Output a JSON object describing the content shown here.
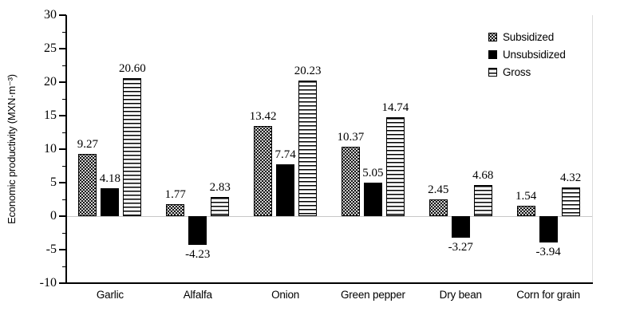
{
  "chart_data": {
    "type": "bar",
    "title": "",
    "xlabel": "",
    "ylabel": "Economic productivity (MXN·m⁻³)",
    "ylim": [
      -10,
      30
    ],
    "ytick_step": 5,
    "ytick_labels": [
      "-10",
      "-5",
      "0",
      "5",
      "10",
      "15",
      "20",
      "25",
      "30"
    ],
    "grid": false,
    "legend_position": "top-right",
    "value_labels_decimals": 2,
    "categories": [
      "Garlic",
      "Alfalfa",
      "Onion",
      "Green pepper",
      "Dry bean",
      "Corn for grain"
    ],
    "series": [
      {
        "name": "Subsidized",
        "pattern": "dots",
        "values": [
          9.27,
          1.77,
          13.42,
          10.37,
          2.45,
          1.54
        ]
      },
      {
        "name": "Unsubsidized",
        "pattern": "solid",
        "values": [
          4.18,
          -4.23,
          7.74,
          5.05,
          -3.27,
          -3.94
        ]
      },
      {
        "name": "Gross",
        "pattern": "hlines",
        "values": [
          20.6,
          2.83,
          20.23,
          14.74,
          4.68,
          4.32
        ]
      }
    ],
    "colors": {
      "bar_outline": "#000000",
      "axis": "#000000",
      "zero_line": "#c8c8c8",
      "frame": "#dcdcdc",
      "text": "#000000"
    }
  }
}
